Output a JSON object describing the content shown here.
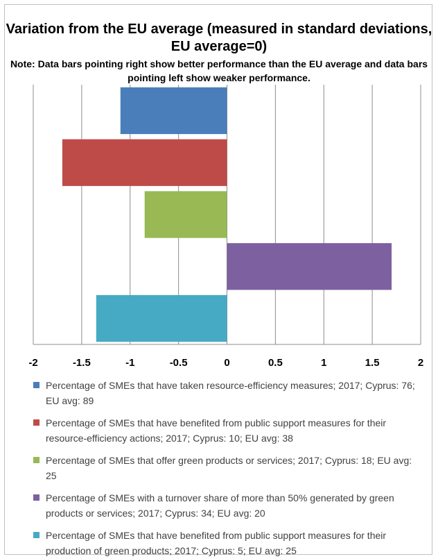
{
  "chart_data": {
    "type": "bar",
    "orientation": "horizontal",
    "title": "Variation from the EU average (measured in standard deviations, EU average=0)",
    "subtitle": "Note: Data bars pointing right show better performance than the EU average and data bars pointing left show weaker performance.",
    "xlim": [
      -2,
      2
    ],
    "x_ticks": [
      "-2",
      "-1.5",
      "-1",
      "-0.5",
      "0",
      "0.5",
      "1",
      "1.5",
      "2"
    ],
    "grid": "vertical",
    "legend_position": "bottom",
    "series": [
      {
        "name": "Percentage of SMEs that have taken resource-efficiency measures; 2017; Cyprus: 76; EU avg: 89",
        "value": -1.1,
        "color": "#4a7ebb"
      },
      {
        "name": "Percentage of SMEs that have benefited from public support measures for their resource-efficiency actions; 2017; Cyprus: 10; EU avg: 38",
        "value": -1.7,
        "color": "#be4b48"
      },
      {
        "name": "Percentage of SMEs that offer green products or services; 2017; Cyprus: 18; EU avg: 25",
        "value": -0.85,
        "color": "#98b954"
      },
      {
        "name": "Percentage of SMEs with a turnover share of more than 50% generated by green products or services; 2017; Cyprus: 34; EU avg: 20",
        "value": 1.7,
        "color": "#7d60a0"
      },
      {
        "name": "Percentage of SMEs that have benefited from public support measures for their production of green products; 2017; Cyprus: 5; EU avg: 25",
        "value": -1.35,
        "color": "#46aac5"
      }
    ]
  }
}
